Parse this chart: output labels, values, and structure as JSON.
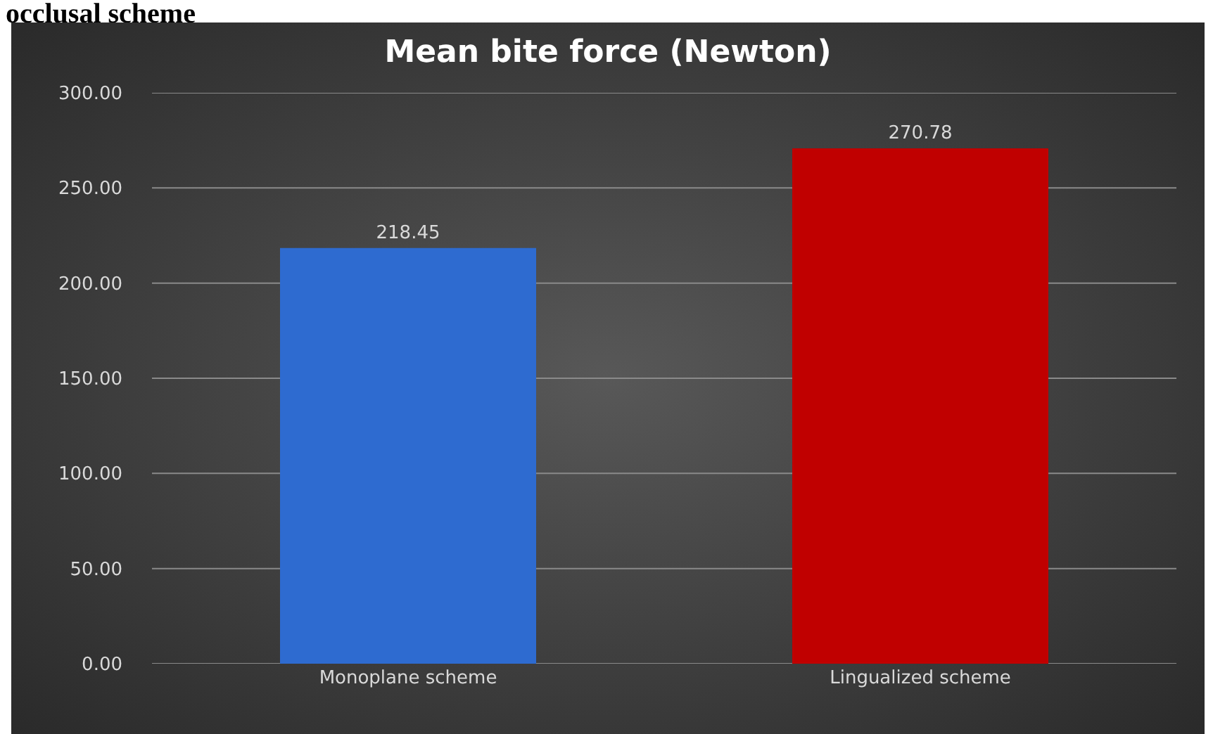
{
  "chart_data": {
    "type": "bar",
    "title": "Mean bite force (Newton)",
    "categories": [
      "Monoplane scheme",
      "Lingualized scheme"
    ],
    "values": [
      218.45,
      270.78
    ],
    "colors": [
      "#2e6bd0",
      "#c00000"
    ],
    "ylim": [
      0,
      300
    ],
    "yticks": [
      {
        "value": 0,
        "label": "0.00"
      },
      {
        "value": 50,
        "label": "50.00"
      },
      {
        "value": 100,
        "label": "100.00"
      },
      {
        "value": 150,
        "label": "150.00"
      },
      {
        "value": 200,
        "label": "200.00"
      },
      {
        "value": 250,
        "label": "250.00"
      },
      {
        "value": 300,
        "label": "300.00"
      }
    ],
    "grid": "y",
    "data_labels": true,
    "annotations": [
      "occlusal scheme"
    ]
  }
}
